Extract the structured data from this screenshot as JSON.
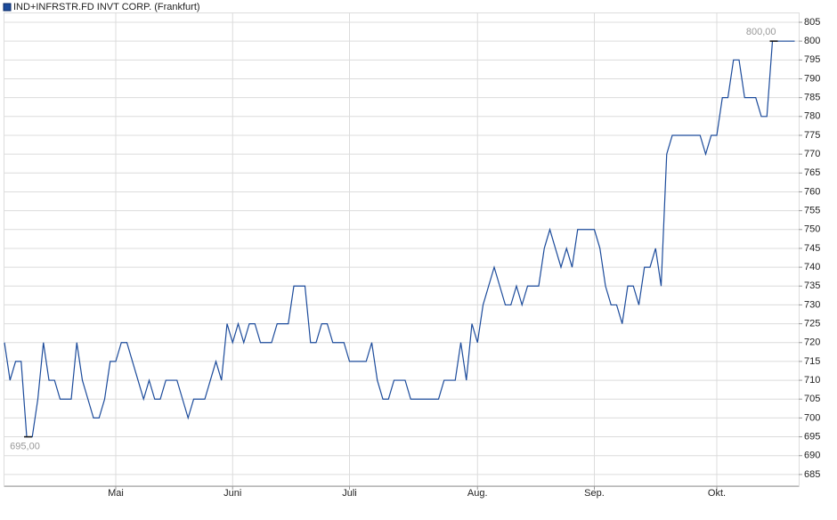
{
  "chart_data": {
    "type": "line",
    "legend_position": "top-left",
    "grid": true,
    "categories": [
      null,
      null,
      null,
      null,
      null,
      null,
      null,
      null,
      null,
      null,
      null,
      null,
      null,
      null,
      null,
      null,
      null,
      null,
      null,
      null,
      "Mai",
      null,
      null,
      null,
      null,
      null,
      null,
      null,
      null,
      null,
      null,
      null,
      null,
      null,
      null,
      null,
      null,
      null,
      null,
      null,
      null,
      "Juni",
      null,
      null,
      null,
      null,
      null,
      null,
      null,
      null,
      null,
      null,
      null,
      null,
      null,
      null,
      null,
      null,
      null,
      null,
      null,
      null,
      "Juli",
      null,
      null,
      null,
      null,
      null,
      null,
      null,
      null,
      null,
      null,
      null,
      null,
      null,
      null,
      null,
      null,
      null,
      null,
      null,
      null,
      null,
      null,
      "Aug.",
      null,
      null,
      null,
      null,
      null,
      null,
      null,
      null,
      null,
      null,
      null,
      null,
      null,
      null,
      null,
      null,
      null,
      null,
      null,
      null,
      "Sep.",
      null,
      null,
      null,
      null,
      null,
      null,
      null,
      null,
      null,
      null,
      null,
      null,
      null,
      null,
      null,
      null,
      null,
      null,
      null,
      null,
      null,
      "Okt.",
      null,
      null,
      null,
      null,
      null,
      null,
      null,
      null,
      null,
      null,
      null,
      null,
      null,
      null
    ],
    "series": [
      {
        "name": "IND+INFRSTR.FD INVT CORP. (Frankfurt)",
        "color": "#1c4b9b",
        "values": [
          720,
          710,
          715,
          715,
          695,
          695,
          705,
          720,
          710,
          710,
          705,
          705,
          705,
          720,
          710,
          705,
          700,
          700,
          705,
          715,
          715,
          720,
          720,
          715,
          710,
          705,
          710,
          705,
          705,
          710,
          710,
          710,
          705,
          700,
          705,
          705,
          705,
          710,
          715,
          710,
          725,
          720,
          725,
          720,
          725,
          725,
          720,
          720,
          720,
          725,
          725,
          725,
          735,
          735,
          735,
          720,
          720,
          725,
          725,
          720,
          720,
          720,
          715,
          715,
          715,
          715,
          720,
          710,
          705,
          705,
          710,
          710,
          710,
          705,
          705,
          705,
          705,
          705,
          705,
          710,
          710,
          710,
          720,
          710,
          725,
          720,
          730,
          735,
          740,
          735,
          730,
          730,
          735,
          730,
          735,
          735,
          735,
          745,
          750,
          745,
          740,
          745,
          740,
          750,
          750,
          750,
          750,
          745,
          735,
          730,
          730,
          725,
          735,
          735,
          730,
          740,
          740,
          745,
          735,
          770,
          775,
          775,
          775,
          775,
          775,
          775,
          770,
          775,
          775,
          785,
          785,
          795,
          795,
          785,
          785,
          785,
          780,
          780,
          800,
          800,
          800,
          800,
          800
        ]
      }
    ],
    "annotations": [
      {
        "label": "695,00",
        "value": 695
      },
      {
        "label": "800,00",
        "value": 800
      }
    ],
    "ylim": [
      681.9,
      807.6
    ],
    "yticks": [
      685,
      690,
      695,
      700,
      705,
      710,
      715,
      720,
      725,
      730,
      735,
      740,
      745,
      750,
      755,
      760,
      765,
      770,
      775,
      780,
      785,
      790,
      795,
      800,
      805
    ]
  }
}
